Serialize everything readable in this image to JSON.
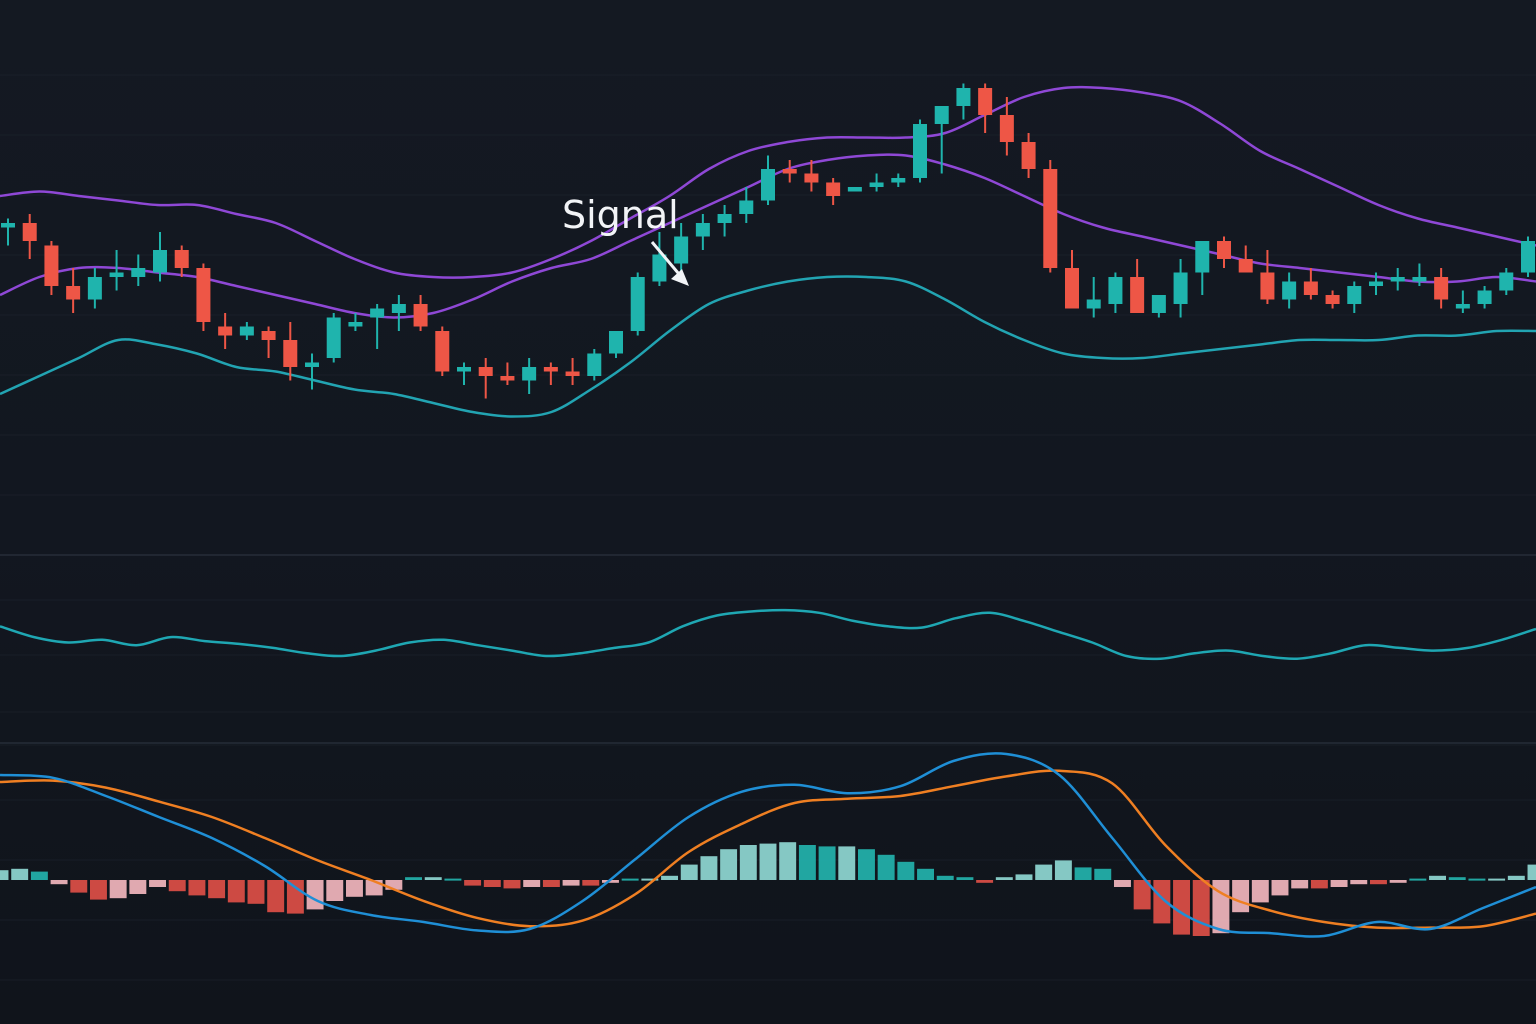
{
  "chart_data": {
    "type": "candlestick-with-indicators",
    "grid": true,
    "colors": {
      "background": "#131820",
      "grid": "#1f2530",
      "up": "#1fb4ad",
      "down": "#ee5646",
      "upper_band": "#8f48d6",
      "middle_band": "#8f48d6",
      "lower_band": "#22a4b2",
      "oscillator": "#1fa7b3",
      "macd_line": "#1f8fd6",
      "signal_line": "#ef7f22",
      "hist_pos_strong": "#23b3ac",
      "hist_pos_weak": "#8fd8d2",
      "hist_neg_strong": "#dd4f46",
      "hist_neg_weak": "#f2b6bd"
    },
    "annotation": {
      "label": "Signal",
      "candle_index": 30
    },
    "price_panel": {
      "ylim": [
        0,
        100
      ],
      "candles": [
        {
          "o": 65,
          "h": 67,
          "l": 61,
          "c": 66
        },
        {
          "o": 66,
          "h": 68,
          "l": 58,
          "c": 62
        },
        {
          "o": 61,
          "h": 62,
          "l": 50,
          "c": 52
        },
        {
          "o": 52,
          "h": 56,
          "l": 46,
          "c": 49
        },
        {
          "o": 49,
          "h": 56,
          "l": 47,
          "c": 54
        },
        {
          "o": 54,
          "h": 60,
          "l": 51,
          "c": 55
        },
        {
          "o": 54,
          "h": 59,
          "l": 52,
          "c": 56
        },
        {
          "o": 55,
          "h": 64,
          "l": 53,
          "c": 60
        },
        {
          "o": 60,
          "h": 61,
          "l": 54,
          "c": 56
        },
        {
          "o": 56,
          "h": 57,
          "l": 42,
          "c": 44
        },
        {
          "o": 43,
          "h": 46,
          "l": 38,
          "c": 41
        },
        {
          "o": 41,
          "h": 44,
          "l": 40,
          "c": 43
        },
        {
          "o": 42,
          "h": 43,
          "l": 36,
          "c": 40
        },
        {
          "o": 40,
          "h": 44,
          "l": 31,
          "c": 34
        },
        {
          "o": 34,
          "h": 37,
          "l": 29,
          "c": 35
        },
        {
          "o": 36,
          "h": 46,
          "l": 35,
          "c": 45
        },
        {
          "o": 43,
          "h": 46,
          "l": 42,
          "c": 44
        },
        {
          "o": 45,
          "h": 48,
          "l": 38,
          "c": 47
        },
        {
          "o": 46,
          "h": 50,
          "l": 42,
          "c": 48
        },
        {
          "o": 48,
          "h": 50,
          "l": 42,
          "c": 43
        },
        {
          "o": 42,
          "h": 43,
          "l": 32,
          "c": 33
        },
        {
          "o": 33,
          "h": 35,
          "l": 30,
          "c": 34
        },
        {
          "o": 34,
          "h": 36,
          "l": 27,
          "c": 32
        },
        {
          "o": 32,
          "h": 35,
          "l": 30,
          "c": 31
        },
        {
          "o": 31,
          "h": 36,
          "l": 28,
          "c": 34
        },
        {
          "o": 34,
          "h": 35,
          "l": 30,
          "c": 33
        },
        {
          "o": 33,
          "h": 36,
          "l": 30,
          "c": 32
        },
        {
          "o": 32,
          "h": 38,
          "l": 31,
          "c": 37
        },
        {
          "o": 37,
          "h": 42,
          "l": 36,
          "c": 42
        },
        {
          "o": 42,
          "h": 55,
          "l": 41,
          "c": 54
        },
        {
          "o": 53,
          "h": 64,
          "l": 52,
          "c": 59
        },
        {
          "o": 57,
          "h": 66,
          "l": 55,
          "c": 63
        },
        {
          "o": 63,
          "h": 68,
          "l": 60,
          "c": 66
        },
        {
          "o": 66,
          "h": 70,
          "l": 63,
          "c": 68
        },
        {
          "o": 68,
          "h": 74,
          "l": 66,
          "c": 71
        },
        {
          "o": 71,
          "h": 81,
          "l": 70,
          "c": 78
        },
        {
          "o": 78,
          "h": 80,
          "l": 75,
          "c": 77
        },
        {
          "o": 77,
          "h": 80,
          "l": 73,
          "c": 75
        },
        {
          "o": 75,
          "h": 76,
          "l": 70,
          "c": 72
        },
        {
          "o": 73,
          "h": 74,
          "l": 73,
          "c": 74
        },
        {
          "o": 74,
          "h": 77,
          "l": 73,
          "c": 75
        },
        {
          "o": 75,
          "h": 77,
          "l": 74,
          "c": 76
        },
        {
          "o": 76,
          "h": 89,
          "l": 75,
          "c": 88
        },
        {
          "o": 88,
          "h": 92,
          "l": 77,
          "c": 92
        },
        {
          "o": 92,
          "h": 97,
          "l": 89,
          "c": 96
        },
        {
          "o": 96,
          "h": 97,
          "l": 86,
          "c": 90
        },
        {
          "o": 90,
          "h": 94,
          "l": 81,
          "c": 84
        },
        {
          "o": 84,
          "h": 86,
          "l": 76,
          "c": 78
        },
        {
          "o": 78,
          "h": 80,
          "l": 55,
          "c": 56
        },
        {
          "o": 56,
          "h": 60,
          "l": 48,
          "c": 47
        },
        {
          "o": 47,
          "h": 54,
          "l": 45,
          "c": 49
        },
        {
          "o": 48,
          "h": 55,
          "l": 46,
          "c": 54
        },
        {
          "o": 54,
          "h": 58,
          "l": 46,
          "c": 46
        },
        {
          "o": 46,
          "h": 50,
          "l": 45,
          "c": 50
        },
        {
          "o": 48,
          "h": 58,
          "l": 45,
          "c": 55
        },
        {
          "o": 55,
          "h": 62,
          "l": 50,
          "c": 62
        },
        {
          "o": 62,
          "h": 63,
          "l": 56,
          "c": 58
        },
        {
          "o": 58,
          "h": 61,
          "l": 56,
          "c": 55
        },
        {
          "o": 55,
          "h": 60,
          "l": 48,
          "c": 49
        },
        {
          "o": 49,
          "h": 55,
          "l": 47,
          "c": 53
        },
        {
          "o": 53,
          "h": 56,
          "l": 49,
          "c": 50
        },
        {
          "o": 50,
          "h": 51,
          "l": 47,
          "c": 48
        },
        {
          "o": 48,
          "h": 53,
          "l": 46,
          "c": 52
        },
        {
          "o": 52,
          "h": 55,
          "l": 50,
          "c": 53
        },
        {
          "o": 53,
          "h": 56,
          "l": 51,
          "c": 54
        },
        {
          "o": 53,
          "h": 57,
          "l": 52,
          "c": 54
        },
        {
          "o": 54,
          "h": 56,
          "l": 47,
          "c": 49
        },
        {
          "o": 47,
          "h": 51,
          "l": 46,
          "c": 48
        },
        {
          "o": 48,
          "h": 52,
          "l": 47,
          "c": 51
        },
        {
          "o": 51,
          "h": 56,
          "l": 50,
          "c": 55
        },
        {
          "o": 55,
          "h": 63,
          "l": 54,
          "c": 62
        }
      ],
      "upper_band": [
        72,
        73,
        72,
        71,
        70,
        70,
        68,
        66,
        62,
        58,
        55,
        54,
        54,
        55,
        58,
        62,
        67,
        72,
        78,
        82,
        84,
        85,
        85,
        85,
        86,
        90,
        94,
        96,
        96,
        95,
        93,
        88,
        82,
        78,
        74,
        70,
        67,
        65,
        63,
        61
      ],
      "middle_band": [
        50,
        54,
        56,
        56,
        55,
        54,
        52,
        50,
        48,
        46,
        45,
        46,
        49,
        53,
        56,
        58,
        62,
        66,
        70,
        74,
        78,
        80,
        81,
        81,
        79,
        76,
        72,
        68,
        65,
        63,
        61,
        59,
        57,
        56,
        55,
        54,
        53,
        53,
        54,
        53
      ],
      "lower_band": [
        28,
        32,
        36,
        40,
        39,
        37,
        34,
        33,
        31,
        29,
        28,
        26,
        24,
        23,
        24,
        29,
        35,
        42,
        48,
        51,
        53,
        54,
        54,
        53,
        49,
        44,
        40,
        37,
        36,
        36,
        37,
        38,
        39,
        40,
        40,
        40,
        41,
        41,
        42,
        42
      ]
    },
    "oscillator_panel": {
      "ylim": [
        0,
        100
      ],
      "values": [
        62,
        54,
        50,
        52,
        48,
        54,
        51,
        49,
        46,
        42,
        40,
        44,
        50,
        52,
        48,
        44,
        40,
        42,
        46,
        50,
        62,
        70,
        73,
        74,
        72,
        66,
        62,
        61,
        68,
        72,
        66,
        58,
        50,
        40,
        38,
        42,
        44,
        40,
        38,
        42,
        48,
        46,
        44,
        46,
        52,
        60
      ]
    },
    "macd_panel": {
      "ylim": [
        -10,
        10
      ],
      "macd_line": [
        7.5,
        7.3,
        6,
        4.5,
        3,
        1,
        -1.5,
        -2.5,
        -3,
        -3.6,
        -3.5,
        -1.5,
        1.5,
        4.5,
        6.3,
        6.8,
        6.2,
        6.7,
        8.5,
        9,
        7.5,
        3,
        -1.5,
        -3.5,
        -3.8,
        -4,
        -3,
        -3.5,
        -2,
        -0.5
      ],
      "signal_line": [
        7,
        7.1,
        6.6,
        5.6,
        4.5,
        3,
        1.4,
        0,
        -1.5,
        -2.7,
        -3.3,
        -2.9,
        -1,
        2,
        4,
        5.5,
        5.8,
        6,
        6.7,
        7.4,
        7.8,
        6.9,
        2.5,
        -0.8,
        -2.2,
        -3,
        -3.4,
        -3.4,
        -3.3,
        -2.4
      ],
      "histogram": [
        0.7,
        0.8,
        0.6,
        -0.3,
        -0.9,
        -1.4,
        -1.3,
        -1,
        -0.5,
        -0.8,
        -1.1,
        -1.3,
        -1.6,
        -1.7,
        -2.3,
        -2.4,
        -2.1,
        -1.5,
        -1.2,
        -1.1,
        -0.7,
        0.2,
        0.2,
        0.1,
        -0.4,
        -0.5,
        -0.6,
        -0.5,
        -0.5,
        -0.4,
        -0.4,
        -0.2,
        0.1,
        0.1,
        0.3,
        1.1,
        1.7,
        2.2,
        2.5,
        2.6,
        2.7,
        2.5,
        2.4,
        2.4,
        2.2,
        1.8,
        1.3,
        0.8,
        0.3,
        0.2,
        -0.2,
        0.2,
        0.4,
        1.1,
        1.4,
        0.9,
        0.8,
        -0.5,
        -2.1,
        -3.1,
        -3.9,
        -4,
        -3.8,
        -2.3,
        -1.6,
        -1.1,
        -0.6,
        -0.6,
        -0.5,
        -0.3,
        -0.3,
        -0.2,
        0.1,
        0.3,
        0.2,
        0.1,
        0.1,
        0.3,
        1.1
      ]
    }
  }
}
